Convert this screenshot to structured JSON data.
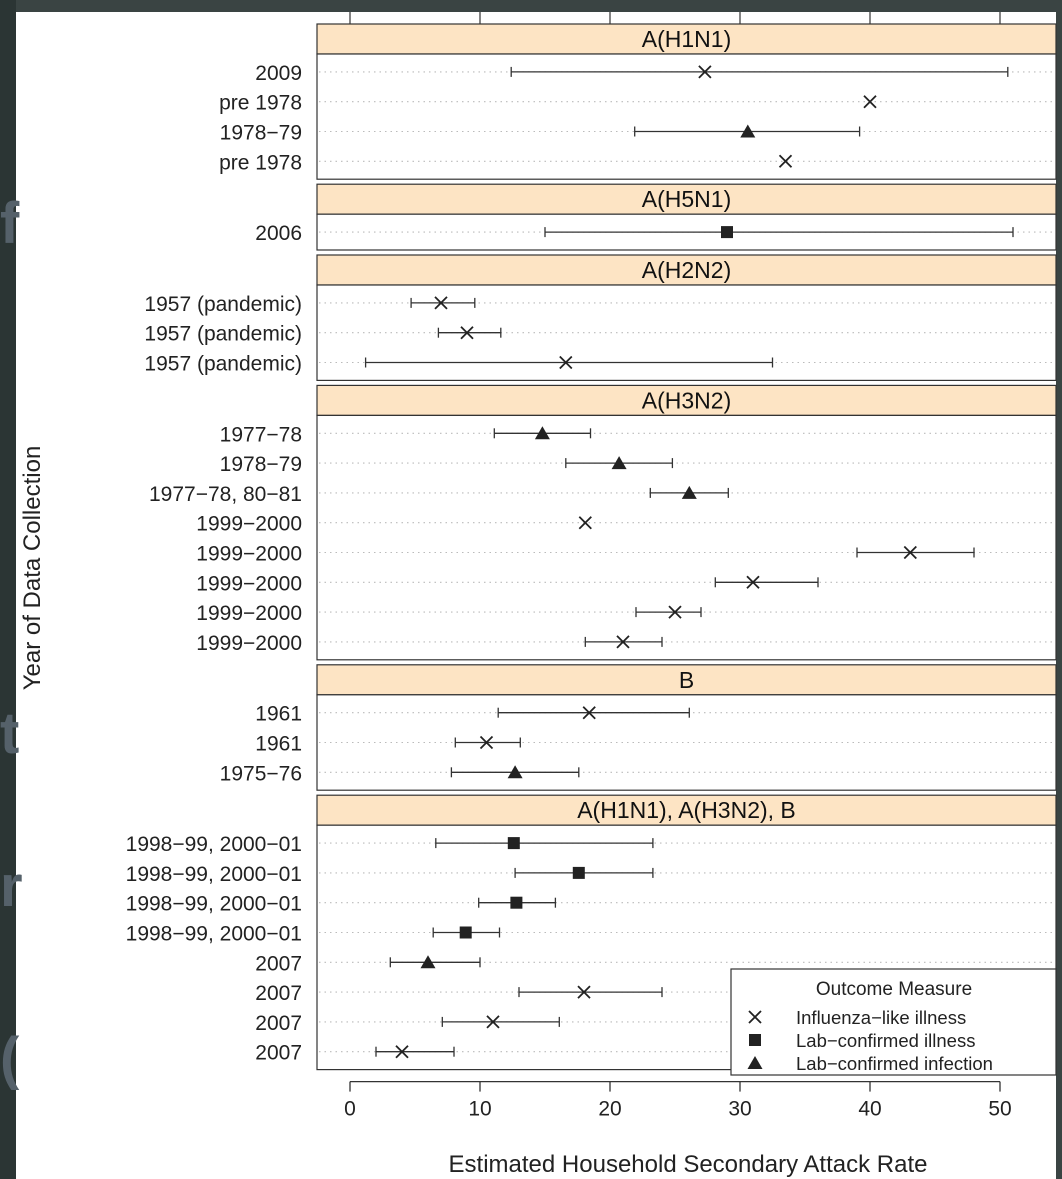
{
  "chart_data": {
    "type": "scatter",
    "subtype": "forest-plot",
    "xlabel": "Estimated Household Secondary Attack Rate",
    "ylabel": "Year of Data Collection",
    "xlim": [
      0,
      50
    ],
    "x_ticks": [
      "0",
      "10",
      "20",
      "30",
      "40",
      "50"
    ],
    "grid": "dotted horizontal row guides",
    "legend": {
      "title": "Outcome Measure",
      "position": "bottom-right",
      "entries": [
        {
          "label": "Influenza−like illness",
          "marker": "cross"
        },
        {
          "label": "Lab−confirmed illness",
          "marker": "square"
        },
        {
          "label": "Lab−confirmed infection",
          "marker": "triangle"
        }
      ]
    },
    "panels": [
      {
        "title": "A(H1N1)",
        "rows": [
          {
            "label": "2009",
            "marker": "cross",
            "estimate": 27.3,
            "lower": 12.4,
            "upper": 50.6
          },
          {
            "label": "pre 1978",
            "marker": "cross",
            "estimate": 40.0,
            "lower": null,
            "upper": null
          },
          {
            "label": "1978−79",
            "marker": "triangle",
            "estimate": 30.6,
            "lower": 21.9,
            "upper": 39.2
          },
          {
            "label": "pre 1978",
            "marker": "cross",
            "estimate": 33.5,
            "lower": null,
            "upper": null
          }
        ]
      },
      {
        "title": "A(H5N1)",
        "rows": [
          {
            "label": "2006",
            "marker": "square",
            "estimate": 29.0,
            "lower": 15.0,
            "upper": 51.0
          }
        ]
      },
      {
        "title": "A(H2N2)",
        "rows": [
          {
            "label": "1957 (pandemic)",
            "marker": "cross",
            "estimate": 7.0,
            "lower": 4.7,
            "upper": 9.6
          },
          {
            "label": "1957 (pandemic)",
            "marker": "cross",
            "estimate": 9.0,
            "lower": 6.8,
            "upper": 11.6
          },
          {
            "label": "1957 (pandemic)",
            "marker": "cross",
            "estimate": 16.6,
            "lower": 1.2,
            "upper": 32.5
          }
        ]
      },
      {
        "title": "A(H3N2)",
        "rows": [
          {
            "label": "1977−78",
            "marker": "triangle",
            "estimate": 14.8,
            "lower": 11.1,
            "upper": 18.5
          },
          {
            "label": "1978−79",
            "marker": "triangle",
            "estimate": 20.7,
            "lower": 16.6,
            "upper": 24.8
          },
          {
            "label": "1977−78, 80−81",
            "marker": "triangle",
            "estimate": 26.1,
            "lower": 23.1,
            "upper": 29.1
          },
          {
            "label": "1999−2000",
            "marker": "cross",
            "estimate": 18.1,
            "lower": null,
            "upper": null
          },
          {
            "label": "1999−2000",
            "marker": "cross",
            "estimate": 43.1,
            "lower": 39.0,
            "upper": 48.0
          },
          {
            "label": "1999−2000",
            "marker": "cross",
            "estimate": 31.0,
            "lower": 28.1,
            "upper": 36.0
          },
          {
            "label": "1999−2000",
            "marker": "cross",
            "estimate": 25.0,
            "lower": 22.0,
            "upper": 27.0
          },
          {
            "label": "1999−2000",
            "marker": "cross",
            "estimate": 21.0,
            "lower": 18.1,
            "upper": 24.0
          }
        ]
      },
      {
        "title": "B",
        "rows": [
          {
            "label": "1961",
            "marker": "cross",
            "estimate": 18.4,
            "lower": 11.4,
            "upper": 26.1
          },
          {
            "label": "1961",
            "marker": "cross",
            "estimate": 10.5,
            "lower": 8.1,
            "upper": 13.1
          },
          {
            "label": "1975−76",
            "marker": "triangle",
            "estimate": 12.7,
            "lower": 7.8,
            "upper": 17.6
          }
        ]
      },
      {
        "title": "A(H1N1), A(H3N2), B",
        "rows": [
          {
            "label": "1998−99, 2000−01",
            "marker": "square",
            "estimate": 12.6,
            "lower": 6.6,
            "upper": 23.3
          },
          {
            "label": "1998−99, 2000−01",
            "marker": "square",
            "estimate": 17.6,
            "lower": 12.7,
            "upper": 23.3
          },
          {
            "label": "1998−99, 2000−01",
            "marker": "square",
            "estimate": 12.8,
            "lower": 9.9,
            "upper": 15.8
          },
          {
            "label": "1998−99, 2000−01",
            "marker": "square",
            "estimate": 8.9,
            "lower": 6.4,
            "upper": 11.5
          },
          {
            "label": "2007",
            "marker": "triangle",
            "estimate": 6.0,
            "lower": 3.1,
            "upper": 10.0
          },
          {
            "label": "2007",
            "marker": "cross",
            "estimate": 18.0,
            "lower": 13.0,
            "upper": 24.0
          },
          {
            "label": "2007",
            "marker": "cross",
            "estimate": 11.0,
            "lower": 7.1,
            "upper": 16.1
          },
          {
            "label": "2007",
            "marker": "cross",
            "estimate": 4.0,
            "lower": 2.0,
            "upper": 8.0
          }
        ]
      }
    ]
  },
  "background": {
    "slide_glyphs": [
      "f",
      "t",
      "r",
      "("
    ]
  },
  "colors": {
    "panel_strip": "#fde4c4",
    "marker": "#222222",
    "axis": "#333333",
    "slide_background": "#1f2a2a"
  }
}
